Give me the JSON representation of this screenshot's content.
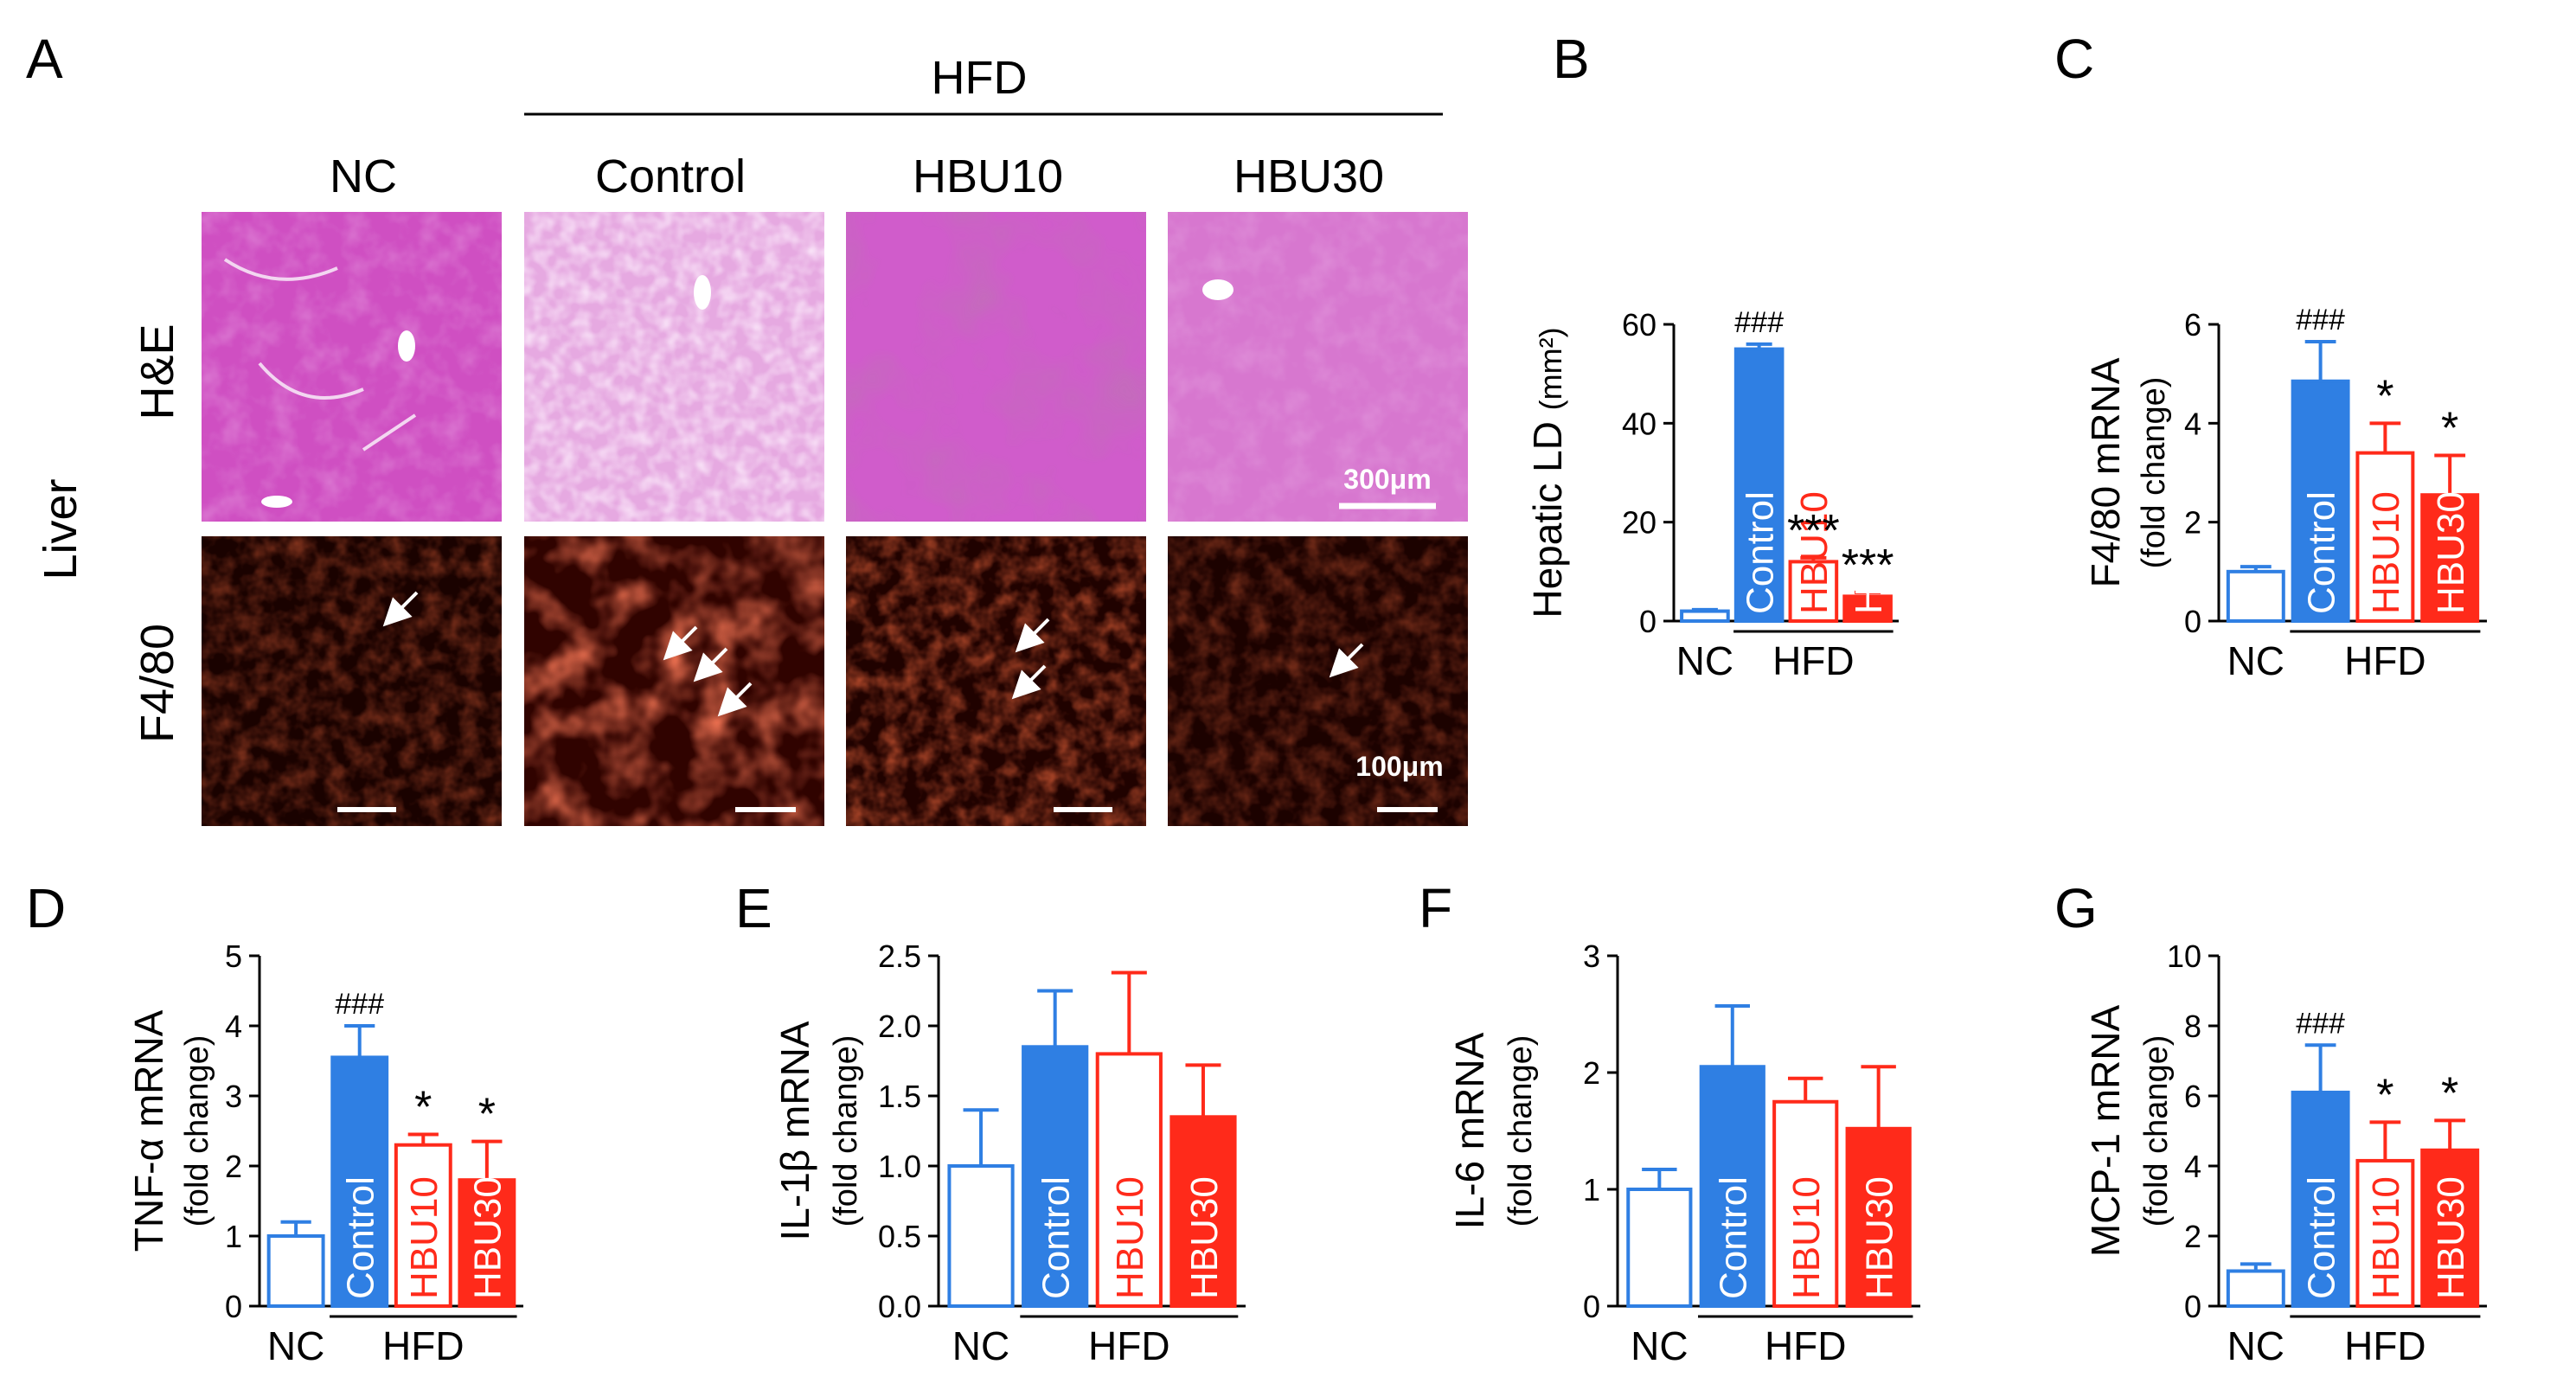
{
  "colors": {
    "nc": "#2f7fe3",
    "control": "#2f7fe3",
    "hbu10": "#ff2a1a",
    "hbu30": "#ff2a1a",
    "text": "#000000"
  },
  "panel_a": {
    "letter": "A",
    "hfd_label": "HFD",
    "columns": [
      "NC",
      "Control",
      "HBU10",
      "HBU30"
    ],
    "row_labels": [
      "H&E",
      "F4/80"
    ],
    "organ_label": "Liver",
    "scale_he": "300μm",
    "scale_f480": "100μm"
  },
  "chart_data": [
    {
      "panel": "B",
      "type": "bar",
      "ylabel_main": "Hepatic LD",
      "ylabel_unit": "(mm²)",
      "ylabel_sub": "",
      "ylim": [
        0,
        60
      ],
      "yticks": [
        "0",
        "20",
        "40",
        "60"
      ],
      "categories": [
        "NC",
        "Control",
        "HBU10",
        "HBU30"
      ],
      "values": [
        2,
        55,
        12,
        5
      ],
      "errors": [
        0.3,
        1,
        0.8,
        0.8
      ],
      "bar_labels": [
        "",
        "Control",
        "HBU10",
        "HBU30"
      ],
      "annotations": [
        "",
        "###",
        "***",
        "***"
      ],
      "xgroup": [
        "NC",
        "HFD"
      ]
    },
    {
      "panel": "C",
      "type": "bar",
      "ylabel_main": "F4/80 mRNA",
      "ylabel_unit": "",
      "ylabel_sub": "(fold change)",
      "ylim": [
        0,
        6
      ],
      "yticks": [
        "0",
        "2",
        "4",
        "6"
      ],
      "categories": [
        "NC",
        "Control",
        "HBU10",
        "HBU30"
      ],
      "values": [
        1.0,
        4.85,
        3.4,
        2.55
      ],
      "errors": [
        0.1,
        0.8,
        0.6,
        0.8
      ],
      "bar_labels": [
        "",
        "Control",
        "HBU10",
        "HBU30"
      ],
      "annotations": [
        "",
        "###",
        "*",
        "*"
      ],
      "xgroup": [
        "NC",
        "HFD"
      ]
    },
    {
      "panel": "D",
      "type": "bar",
      "ylabel_main": "TNF-α mRNA",
      "ylabel_unit": "",
      "ylabel_sub": "(fold change)",
      "ylim": [
        0,
        5
      ],
      "yticks": [
        "0",
        "1",
        "2",
        "3",
        "4",
        "5"
      ],
      "categories": [
        "NC",
        "Control",
        "HBU10",
        "HBU30"
      ],
      "values": [
        1.0,
        3.55,
        2.3,
        1.8
      ],
      "errors": [
        0.2,
        0.45,
        0.15,
        0.55
      ],
      "bar_labels": [
        "",
        "Control",
        "HBU10",
        "HBU30"
      ],
      "annotations": [
        "",
        "###",
        "*",
        "*"
      ],
      "xgroup": [
        "NC",
        "HFD"
      ]
    },
    {
      "panel": "E",
      "type": "bar",
      "ylabel_main": "IL-1β mRNA",
      "ylabel_unit": "",
      "ylabel_sub": "(fold change)",
      "ylim": [
        0,
        2.5
      ],
      "yticks": [
        "0.0",
        "0.5",
        "1.0",
        "1.5",
        "2.0",
        "2.5"
      ],
      "categories": [
        "NC",
        "Control",
        "HBU10",
        "HBU30"
      ],
      "values": [
        1.0,
        1.85,
        1.8,
        1.35
      ],
      "errors": [
        0.4,
        0.4,
        0.58,
        0.37
      ],
      "bar_labels": [
        "",
        "Control",
        "HBU10",
        "HBU30"
      ],
      "annotations": [
        "",
        "",
        "",
        ""
      ],
      "xgroup": [
        "NC",
        "HFD"
      ]
    },
    {
      "panel": "F",
      "type": "bar",
      "ylabel_main": "IL-6 mRNA",
      "ylabel_unit": "",
      "ylabel_sub": "(fold change)",
      "ylim": [
        0,
        3
      ],
      "yticks": [
        "0",
        "1",
        "2",
        "3"
      ],
      "categories": [
        "NC",
        "Control",
        "HBU10",
        "HBU30"
      ],
      "values": [
        1.0,
        2.05,
        1.75,
        1.52
      ],
      "errors": [
        0.17,
        0.52,
        0.2,
        0.53
      ],
      "bar_labels": [
        "",
        "Control",
        "HBU10",
        "HBU30"
      ],
      "annotations": [
        "",
        "",
        "",
        ""
      ],
      "xgroup": [
        "NC",
        "HFD"
      ]
    },
    {
      "panel": "G",
      "type": "bar",
      "ylabel_main": "MCP-1 mRNA",
      "ylabel_unit": "",
      "ylabel_sub": "(fold change)",
      "ylim": [
        0,
        10
      ],
      "yticks": [
        "0",
        "2",
        "4",
        "6",
        "8",
        "10"
      ],
      "categories": [
        "NC",
        "Control",
        "HBU10",
        "HBU30"
      ],
      "values": [
        1.0,
        6.1,
        4.15,
        4.45
      ],
      "errors": [
        0.2,
        1.35,
        1.1,
        0.85
      ],
      "bar_labels": [
        "",
        "Control",
        "HBU10",
        "HBU30"
      ],
      "annotations": [
        "",
        "###",
        "*",
        "*"
      ],
      "xgroup": [
        "NC",
        "HFD"
      ]
    }
  ]
}
